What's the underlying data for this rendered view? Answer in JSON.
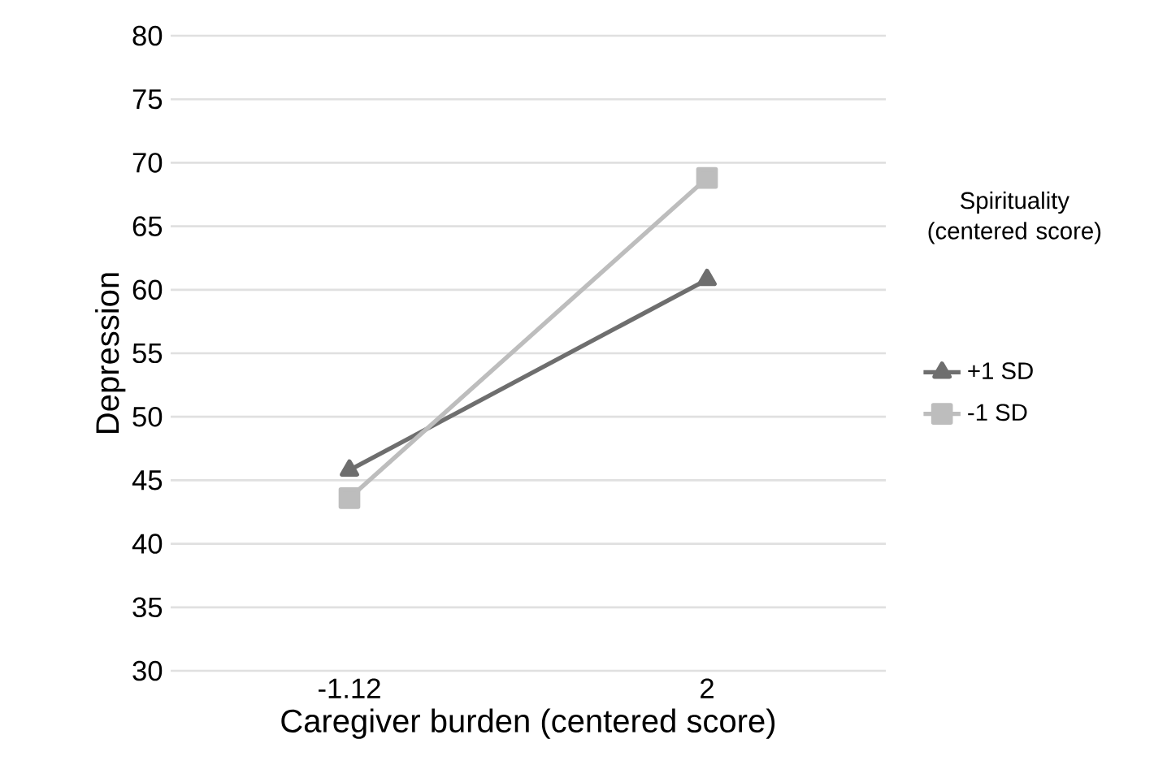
{
  "chart_data": {
    "type": "line",
    "xlabel": "Caregiver burden (centered score)",
    "ylabel": "Depression",
    "legend_title": "Spirituality (centered score)",
    "categories": [
      "-1.12",
      "2"
    ],
    "series": [
      {
        "name": "+1 SD",
        "color": "#6e6e6e",
        "marker": "triangle",
        "values": [
          45.8,
          60.8
        ]
      },
      {
        "name": "-1 SD",
        "color": "#bdbdbd",
        "marker": "square",
        "values": [
          43.6,
          68.8
        ]
      }
    ],
    "ylim": [
      30,
      80
    ],
    "yticks": [
      30,
      35,
      40,
      45,
      50,
      55,
      60,
      65,
      70,
      75,
      80
    ],
    "grid": "y",
    "legend": "right",
    "line_style": "solid"
  }
}
